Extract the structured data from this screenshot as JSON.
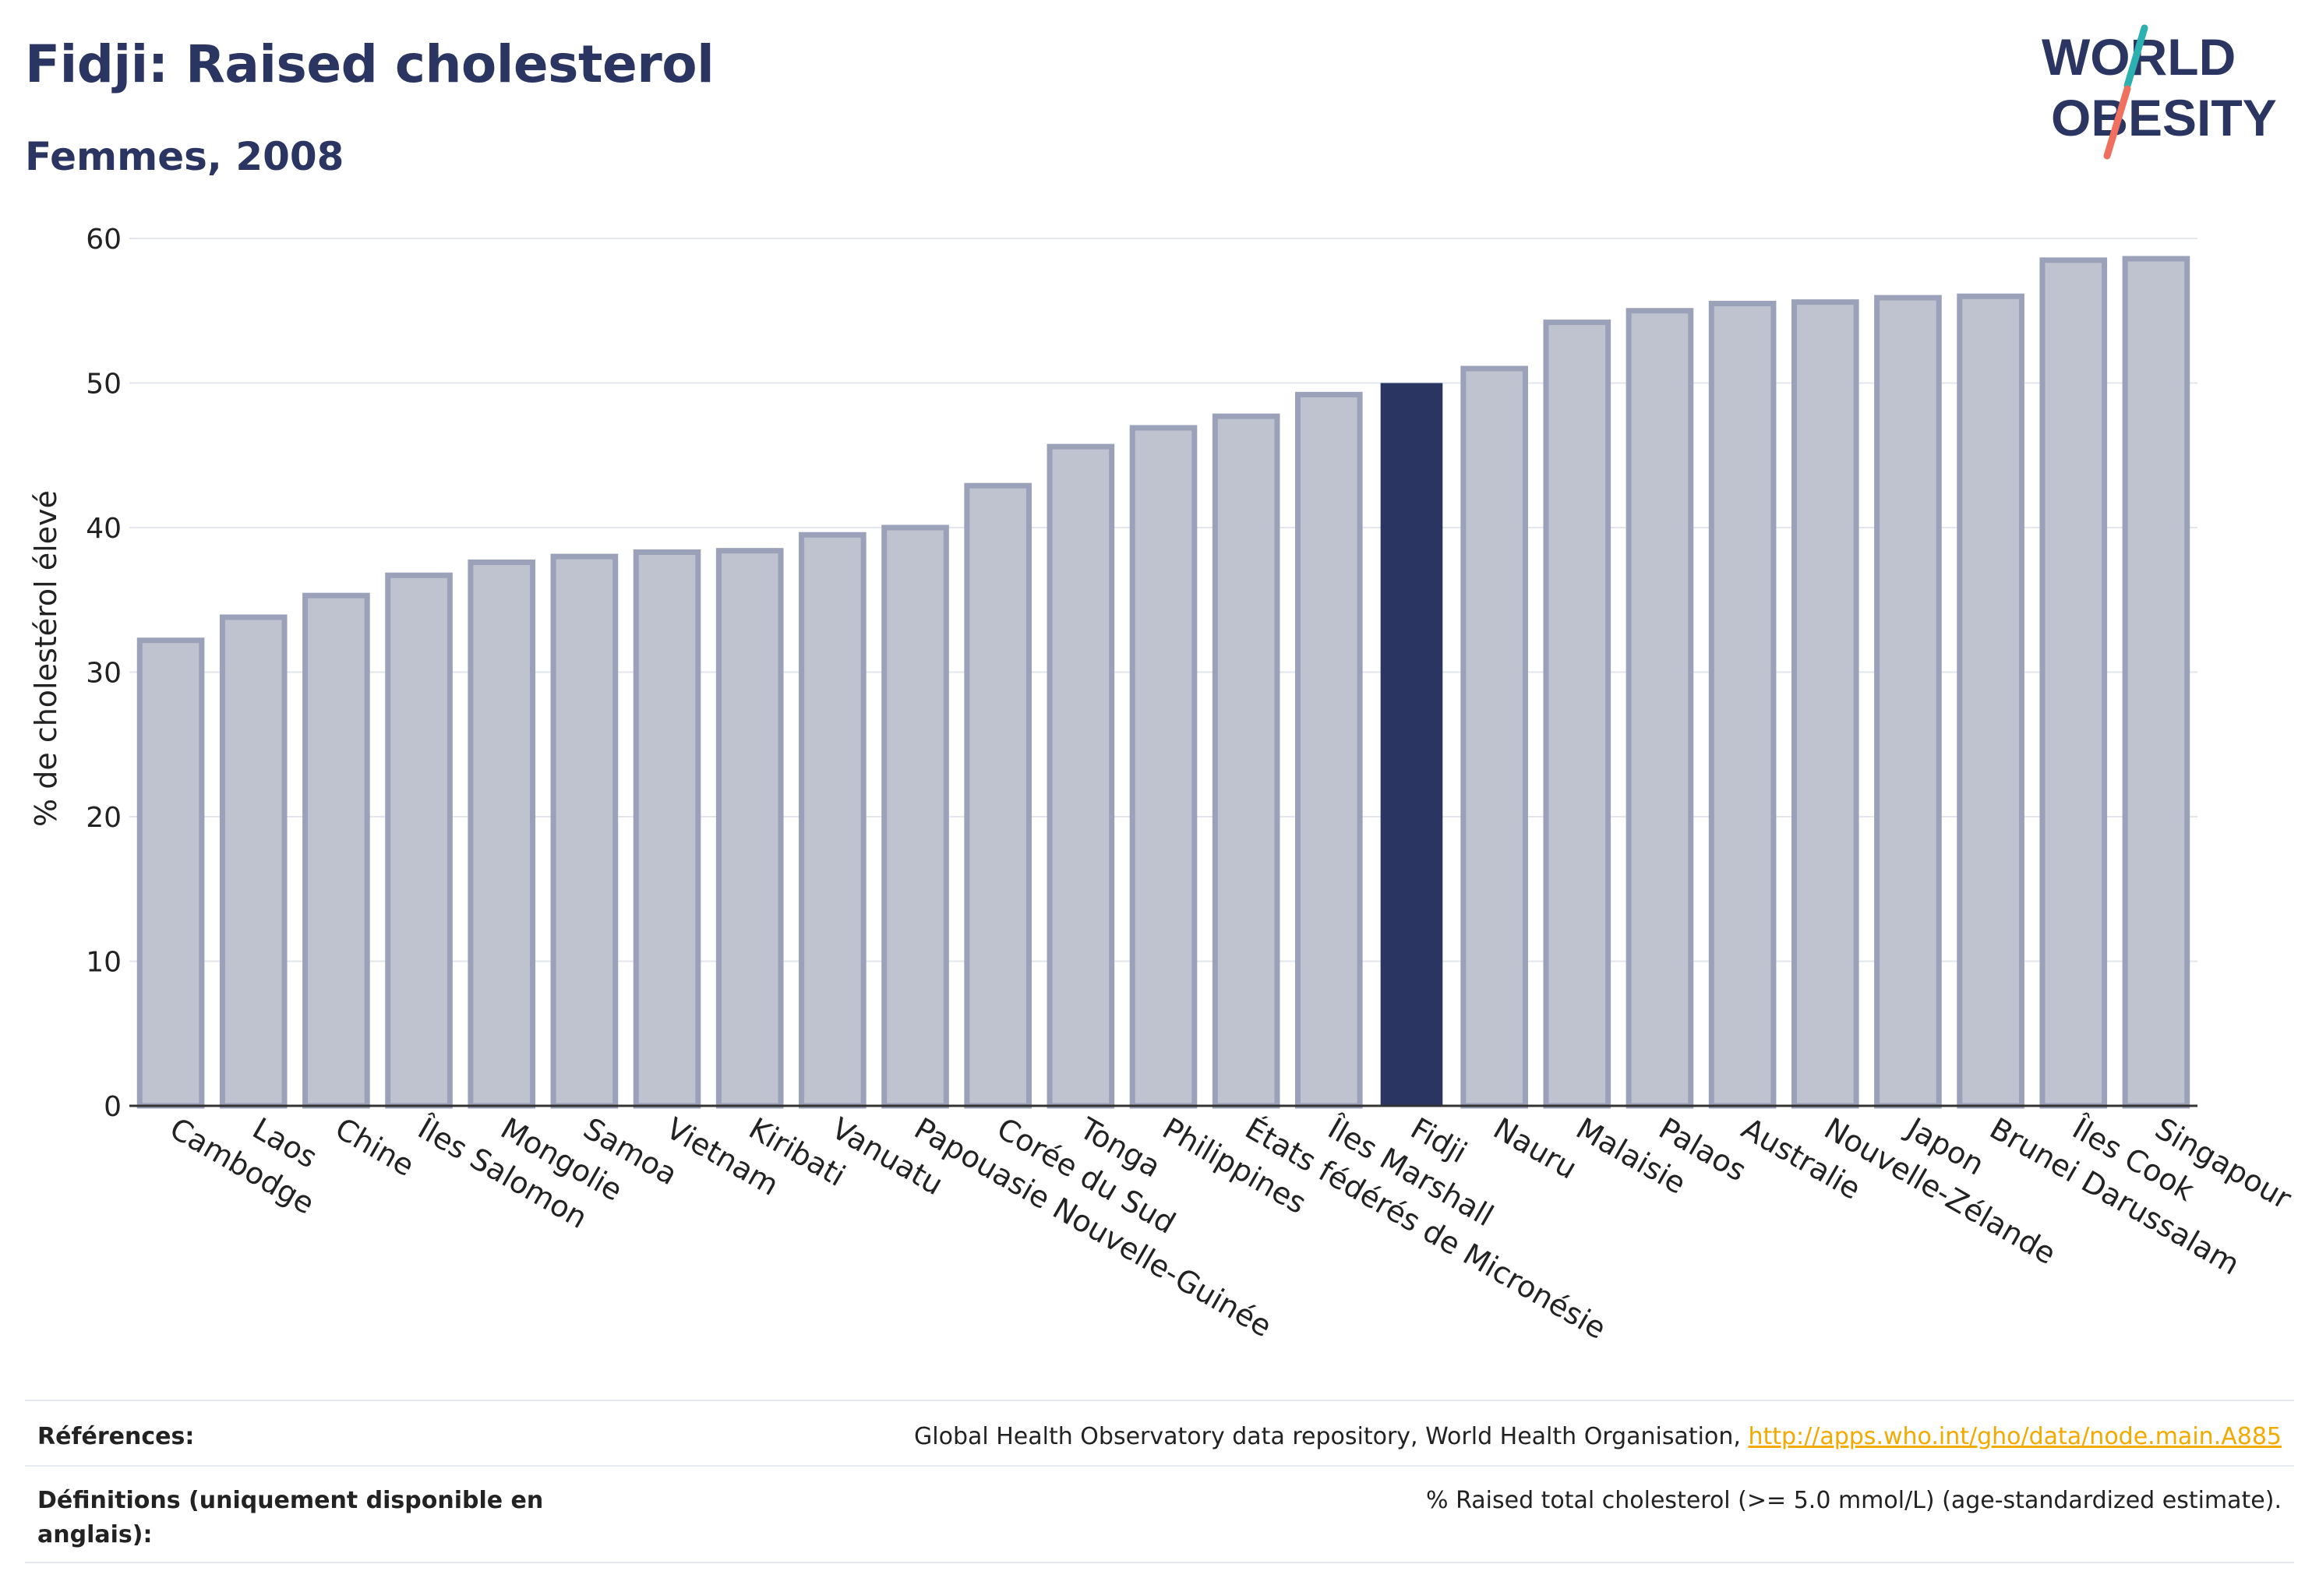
{
  "header": {
    "title": "Fidji: Raised cholesterol",
    "subtitle": "Femmes, 2008"
  },
  "logo": {
    "line1": "WORLD",
    "line2": "OBESITY",
    "colors": {
      "text": "#2a3561",
      "teal": "#2cb1b0",
      "coral": "#f07060"
    }
  },
  "colors": {
    "bar_default_fill": "#bfc3d0",
    "bar_default_stroke": "#9aa1b8",
    "bar_highlight": "#2a3561",
    "grid": "#e3e6ee",
    "axis": "#333333",
    "link": "#f2a900"
  },
  "chart_data": {
    "type": "bar",
    "ylabel": "% de cholestérol élevé",
    "ylim": [
      0,
      60
    ],
    "yticks": [
      0,
      10,
      20,
      30,
      40,
      50,
      60
    ],
    "grid": true,
    "highlight": "Fidji",
    "categories": [
      "Cambodge",
      "Laos",
      "Chine",
      "Îles Salomon",
      "Mongolie",
      "Samoa",
      "Vietnam",
      "Kiribati",
      "Vanuatu",
      "Papouasie Nouvelle-Guinée",
      "Corée du Sud",
      "Tonga",
      "Philippines",
      "États fédérés de Micronésie",
      "Îles Marshall",
      "Fidji",
      "Nauru",
      "Malaisie",
      "Palaos",
      "Australie",
      "Nouvelle-Zélande",
      "Japon",
      "Brunei Darussalam",
      "Îles Cook",
      "Singapour"
    ],
    "values": [
      32.2,
      33.8,
      35.3,
      36.7,
      37.6,
      38.0,
      38.3,
      38.4,
      39.5,
      40.0,
      42.9,
      45.6,
      46.9,
      47.7,
      49.2,
      50.0,
      51.0,
      54.2,
      55.0,
      55.5,
      55.6,
      55.9,
      56.0,
      58.5,
      58.6
    ]
  },
  "footer": {
    "references_label": "Références:",
    "references_text": "Global Health Observatory data repository, World Health Organisation, ",
    "references_link": "http://apps.who.int/gho/data/node.main.A885",
    "definitions_label": "Définitions (uniquement disponible en anglais):",
    "definitions_text": "% Raised total cholesterol (>= 5.0 mmol/L) (age-standardized estimate)."
  }
}
